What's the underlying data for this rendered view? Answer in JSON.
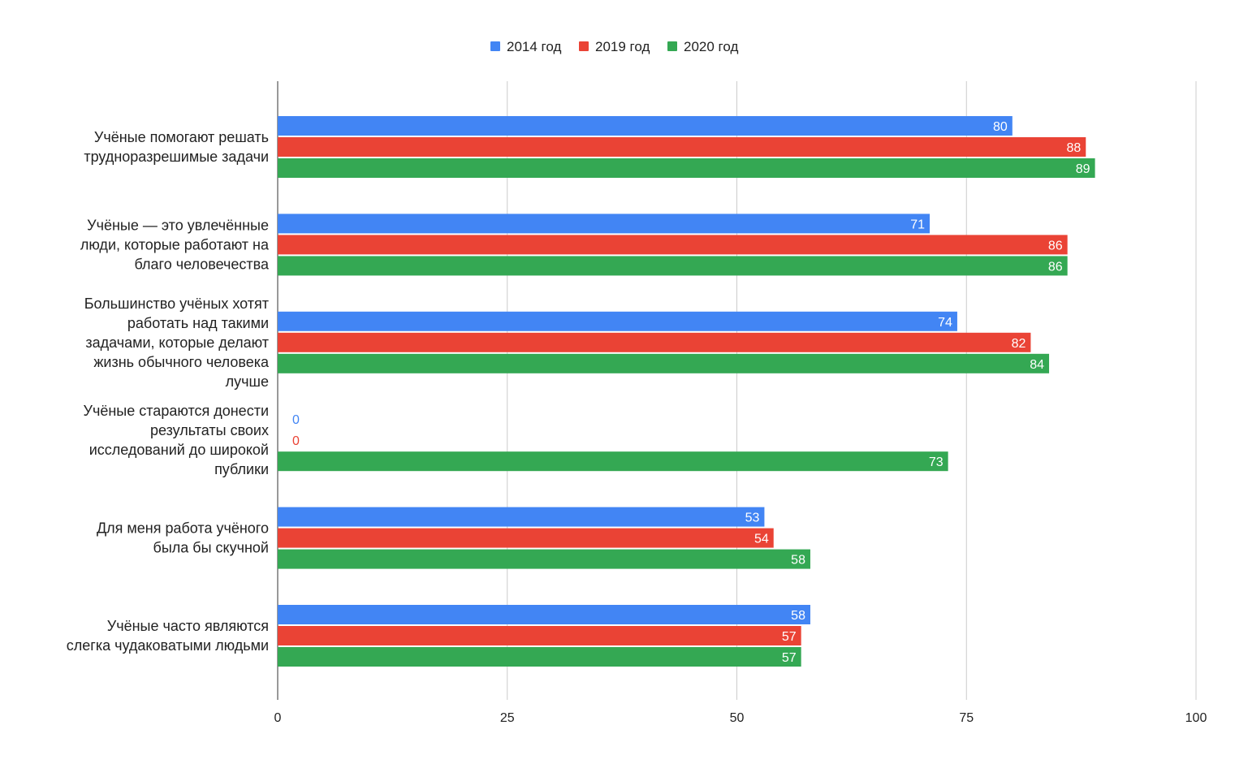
{
  "chart_data": {
    "type": "bar",
    "orientation": "horizontal",
    "categories": [
      [
        "Учёные помогают решать",
        "трудноразрешимые задачи"
      ],
      [
        "Учёные — это увлечённые",
        "люди, которые работают на",
        "благо человечества"
      ],
      [
        "Большинство учёных хотят",
        "работать над такими",
        "задачами, которые делают",
        "жизнь обычного человека",
        "лучше"
      ],
      [
        "Учёные стараются донести",
        "результаты своих",
        "исследований до широкой",
        "публики"
      ],
      [
        "Для меня работа учёного",
        "была бы скучной"
      ],
      [
        "Учёные часто являются",
        "слегка чудаковатыми людьми"
      ]
    ],
    "series": [
      {
        "name": "2014 год",
        "color": "#4285f4",
        "values": [
          80,
          71,
          74,
          0,
          53,
          58
        ]
      },
      {
        "name": "2019 год",
        "color": "#ea4335",
        "values": [
          88,
          86,
          82,
          0,
          54,
          57
        ]
      },
      {
        "name": "2020 год",
        "color": "#34a853",
        "values": [
          89,
          86,
          84,
          73,
          58,
          57
        ]
      }
    ],
    "xlim": [
      0,
      100
    ],
    "xticks": [
      0,
      25,
      50,
      75,
      100
    ],
    "grid": true,
    "legend_position": "top",
    "data_labels": true
  }
}
